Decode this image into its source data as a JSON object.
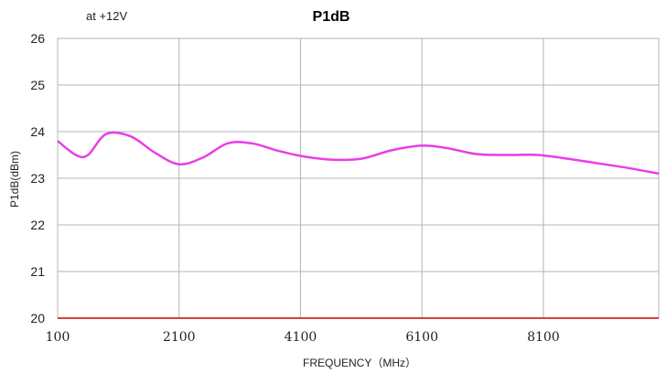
{
  "chart_data": {
    "type": "line",
    "title": "P1dB",
    "subtitle": "at +12V",
    "xlabel": "FREQUENCY（MHz）",
    "ylabel": "P1dB(dBm)",
    "xlim": [
      100,
      10000
    ],
    "ylim": [
      20,
      26
    ],
    "xticks": [
      100,
      2100,
      4100,
      6100,
      8100
    ],
    "yticks": [
      20,
      21,
      22,
      23,
      24,
      25,
      26
    ],
    "x_gridlines": [
      100,
      2100,
      4100,
      6100,
      8100,
      10000
    ],
    "grid": true,
    "series": [
      {
        "color": "#e83ee8",
        "x": [
          100,
          400,
          600,
          900,
          1300,
          1700,
          2100,
          2500,
          2900,
          3300,
          3700,
          4100,
          4600,
          5100,
          5600,
          6100,
          6500,
          7000,
          7500,
          8000,
          8500,
          9000,
          9500,
          10000
        ],
        "y": [
          23.8,
          23.5,
          23.5,
          23.95,
          23.9,
          23.55,
          23.3,
          23.45,
          23.75,
          23.75,
          23.6,
          23.48,
          23.4,
          23.42,
          23.6,
          23.7,
          23.65,
          23.52,
          23.5,
          23.5,
          23.42,
          23.32,
          23.22,
          23.1
        ]
      }
    ],
    "baseline_color": "#cc0000"
  }
}
